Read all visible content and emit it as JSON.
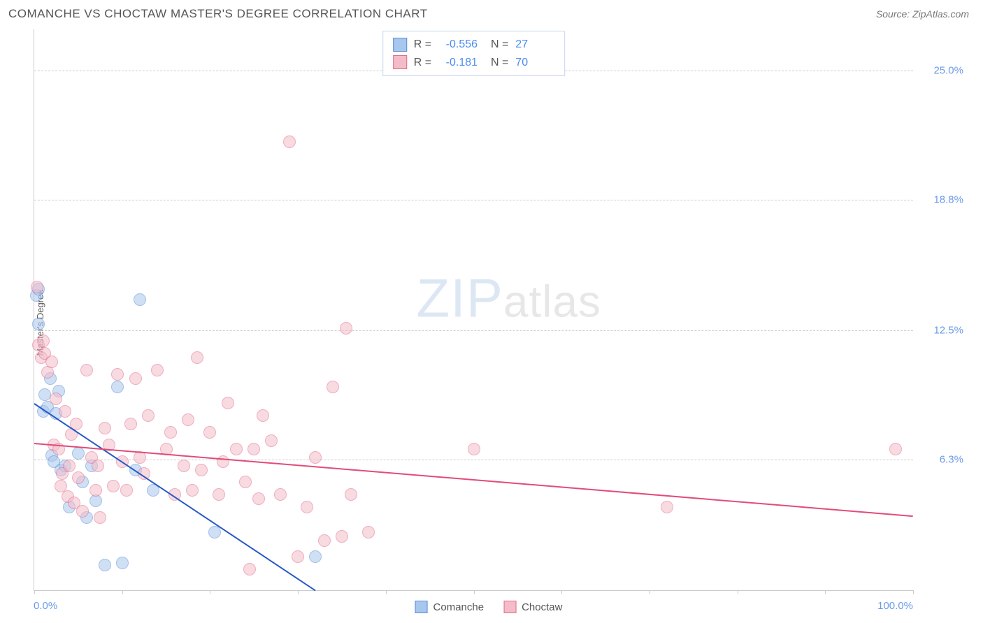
{
  "header": {
    "title": "COMANCHE VS CHOCTAW MASTER'S DEGREE CORRELATION CHART",
    "source": "Source: ZipAtlas.com"
  },
  "chart": {
    "type": "scatter",
    "ylabel": "Master's Degree",
    "xlim": [
      0,
      100
    ],
    "ylim": [
      0,
      27
    ],
    "xlabel_min": "0.0%",
    "xlabel_max": "100.0%",
    "x_ticks": [
      0,
      10,
      20,
      30,
      40,
      50,
      60,
      70,
      80,
      90,
      100
    ],
    "y_gridlines": [
      {
        "value": 6.3,
        "label": "6.3%"
      },
      {
        "value": 12.5,
        "label": "12.5%"
      },
      {
        "value": 18.8,
        "label": "18.8%"
      },
      {
        "value": 25.0,
        "label": "25.0%"
      }
    ],
    "background_color": "#ffffff",
    "grid_color": "#cccccc",
    "axis_label_color": "#6b9be8",
    "watermark": {
      "zip": "ZIP",
      "atlas": "atlas"
    },
    "point_radius": 9,
    "point_opacity": 0.55,
    "series": [
      {
        "name": "Comanche",
        "fill": "#a8c7ee",
        "stroke": "#5b8cd6",
        "trend": {
          "color": "#2659c6",
          "x1": 0,
          "y1": 9.0,
          "x2": 32,
          "y2": 0
        },
        "stats": {
          "R": "-0.556",
          "N": "27"
        },
        "points": [
          [
            0.2,
            14.2
          ],
          [
            0.5,
            12.8
          ],
          [
            0.5,
            14.5
          ],
          [
            1.0,
            8.6
          ],
          [
            1.2,
            9.4
          ],
          [
            1.5,
            8.8
          ],
          [
            1.8,
            10.2
          ],
          [
            2.0,
            6.5
          ],
          [
            2.2,
            6.2
          ],
          [
            2.5,
            8.5
          ],
          [
            2.8,
            9.6
          ],
          [
            3.0,
            5.8
          ],
          [
            3.5,
            6.0
          ],
          [
            4.0,
            4.0
          ],
          [
            5.0,
            6.6
          ],
          [
            5.5,
            5.2
          ],
          [
            6.0,
            3.5
          ],
          [
            6.5,
            6.0
          ],
          [
            7.0,
            4.3
          ],
          [
            8.0,
            1.2
          ],
          [
            9.5,
            9.8
          ],
          [
            10.0,
            1.3
          ],
          [
            11.5,
            5.8
          ],
          [
            13.5,
            4.8
          ],
          [
            20.5,
            2.8
          ],
          [
            32.0,
            1.6
          ],
          [
            12.0,
            14.0
          ]
        ]
      },
      {
        "name": "Choctaw",
        "fill": "#f4bcc9",
        "stroke": "#e16b8e",
        "trend": {
          "color": "#e24b78",
          "x1": 0,
          "y1": 7.1,
          "x2": 100,
          "y2": 3.6
        },
        "stats": {
          "R": "-0.181",
          "N": "70"
        },
        "points": [
          [
            0.3,
            14.6
          ],
          [
            0.5,
            11.8
          ],
          [
            0.8,
            11.2
          ],
          [
            1.0,
            12.0
          ],
          [
            1.2,
            11.4
          ],
          [
            1.5,
            10.5
          ],
          [
            2.0,
            11.0
          ],
          [
            2.2,
            7.0
          ],
          [
            2.5,
            9.2
          ],
          [
            2.8,
            6.8
          ],
          [
            3.0,
            5.0
          ],
          [
            3.2,
            5.6
          ],
          [
            3.5,
            8.6
          ],
          [
            3.8,
            4.5
          ],
          [
            4.0,
            6.0
          ],
          [
            4.2,
            7.5
          ],
          [
            4.5,
            4.2
          ],
          [
            4.8,
            8.0
          ],
          [
            5.0,
            5.4
          ],
          [
            5.5,
            3.8
          ],
          [
            6.0,
            10.6
          ],
          [
            6.5,
            6.4
          ],
          [
            7.0,
            4.8
          ],
          [
            7.2,
            6.0
          ],
          [
            7.5,
            3.5
          ],
          [
            8.0,
            7.8
          ],
          [
            8.5,
            7.0
          ],
          [
            9.0,
            5.0
          ],
          [
            9.5,
            10.4
          ],
          [
            10.0,
            6.2
          ],
          [
            10.5,
            4.8
          ],
          [
            11.0,
            8.0
          ],
          [
            11.5,
            10.2
          ],
          [
            12.0,
            6.4
          ],
          [
            12.5,
            5.6
          ],
          [
            13.0,
            8.4
          ],
          [
            14.0,
            10.6
          ],
          [
            15.0,
            6.8
          ],
          [
            15.5,
            7.6
          ],
          [
            16.0,
            4.6
          ],
          [
            17.0,
            6.0
          ],
          [
            17.5,
            8.2
          ],
          [
            18.0,
            4.8
          ],
          [
            18.5,
            11.2
          ],
          [
            19.0,
            5.8
          ],
          [
            20.0,
            7.6
          ],
          [
            21.0,
            4.6
          ],
          [
            21.5,
            6.2
          ],
          [
            22.0,
            9.0
          ],
          [
            23.0,
            6.8
          ],
          [
            24.0,
            5.2
          ],
          [
            25.0,
            6.8
          ],
          [
            25.5,
            4.4
          ],
          [
            26.0,
            8.4
          ],
          [
            27.0,
            7.2
          ],
          [
            28.0,
            4.6
          ],
          [
            29.0,
            21.6
          ],
          [
            30.0,
            1.6
          ],
          [
            31.0,
            4.0
          ],
          [
            32.0,
            6.4
          ],
          [
            33.0,
            2.4
          ],
          [
            34.0,
            9.8
          ],
          [
            35.0,
            2.6
          ],
          [
            36.0,
            4.6
          ],
          [
            35.5,
            12.6
          ],
          [
            38.0,
            2.8
          ],
          [
            50.0,
            6.8
          ],
          [
            72.0,
            4.0
          ],
          [
            24.5,
            1.0
          ],
          [
            98.0,
            6.8
          ]
        ]
      }
    ],
    "legend_bottom": [
      {
        "label": "Comanche",
        "fill": "#a8c7ee",
        "stroke": "#5b8cd6"
      },
      {
        "label": "Choctaw",
        "fill": "#f4bcc9",
        "stroke": "#e16b8e"
      }
    ]
  }
}
